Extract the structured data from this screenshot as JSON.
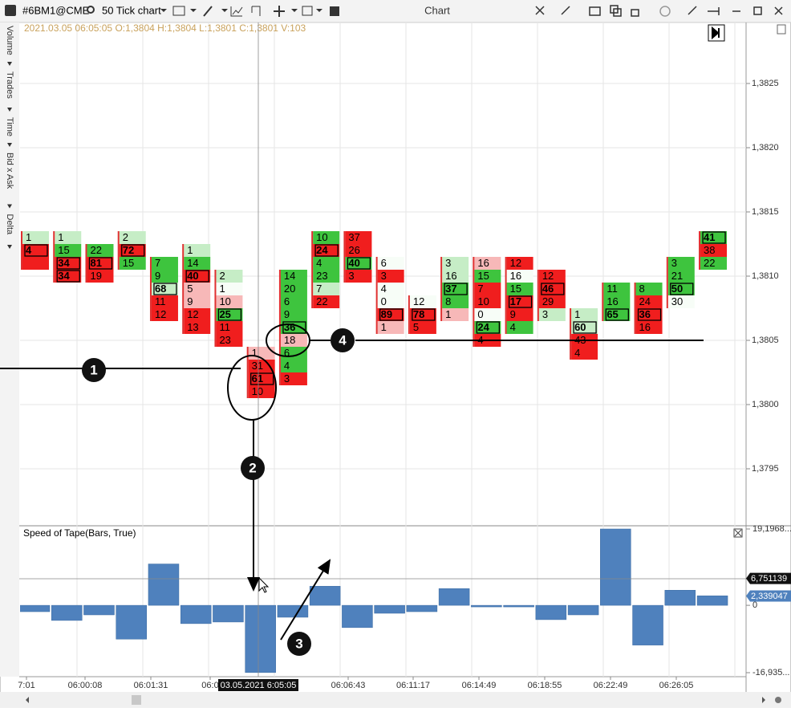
{
  "toolbar": {
    "symbol": "#6BM1@CME",
    "chart_type": "50 Tick chart",
    "window_title": "Chart"
  },
  "side_tabs": [
    "Volume",
    "Trades",
    "Time",
    "Bid x Ask",
    "Delta"
  ],
  "info_line": "2021.03.05 06:05:05 O:1,3804 H:1,3804 L:1,3801 C:1,3801 V:103",
  "price_axis": {
    "ticks": [
      {
        "value": 1.3825,
        "label": "1,3825"
      },
      {
        "value": 1.382,
        "label": "1,3820"
      },
      {
        "value": 1.3815,
        "label": "1,3815"
      },
      {
        "value": 1.381,
        "label": "1,3810"
      },
      {
        "value": 1.3805,
        "label": "1,3805"
      },
      {
        "value": 1.38,
        "label": "1,3800"
      },
      {
        "value": 1.3795,
        "label": "1,3795"
      }
    ]
  },
  "clusters": [
    {
      "high": 1.3813,
      "cells": [
        {
          "v": 1,
          "fill": "lg"
        },
        {
          "v": 4,
          "fill": "r",
          "max": true
        },
        {
          "fill": "r"
        }
      ]
    },
    {
      "high": 1.3813,
      "cells": [
        {
          "v": 1,
          "fill": "lg"
        },
        {
          "v": 15,
          "fill": "g"
        },
        {
          "v": 34,
          "fill": "r",
          "max": true
        },
        {
          "v": 34,
          "fill": "r",
          "max": true
        }
      ]
    },
    {
      "high": 1.3812,
      "cells": [
        {
          "v": 22,
          "fill": "g"
        },
        {
          "v": 81,
          "fill": "r",
          "max": true
        },
        {
          "v": 19,
          "fill": "r"
        }
      ]
    },
    {
      "high": 1.3813,
      "cells": [
        {
          "v": 2,
          "fill": "lg"
        },
        {
          "v": 72,
          "fill": "r",
          "max": true
        },
        {
          "v": 15,
          "fill": "g"
        }
      ]
    },
    {
      "high": 1.3811,
      "cells": [
        {
          "v": 7,
          "fill": "g"
        },
        {
          "v": 9,
          "fill": "g"
        },
        {
          "v": 68,
          "fill": "lg",
          "max": true
        },
        {
          "v": 11,
          "fill": "r"
        },
        {
          "v": 12,
          "fill": "r"
        }
      ]
    },
    {
      "high": 1.3812,
      "cells": [
        {
          "v": 1,
          "fill": "lg"
        },
        {
          "v": 14,
          "fill": "g"
        },
        {
          "v": 40,
          "fill": "r",
          "max": true
        },
        {
          "v": 5,
          "fill": "lr"
        },
        {
          "v": 9,
          "fill": "lr"
        },
        {
          "v": 12,
          "fill": "r"
        },
        {
          "v": 13,
          "fill": "r"
        }
      ]
    },
    {
      "high": 1.381,
      "cells": [
        {
          "v": 2,
          "fill": "lg"
        },
        {
          "v": 1,
          "fill": "w"
        },
        {
          "v": 10,
          "fill": "lr"
        },
        {
          "v": 25,
          "fill": "g",
          "max": true
        },
        {
          "v": 11,
          "fill": "r"
        },
        {
          "v": 23,
          "fill": "r"
        }
      ]
    },
    {
      "high": 1.3804,
      "cells": [
        {
          "v": 1,
          "fill": "lr"
        },
        {
          "v": 31,
          "fill": "r"
        },
        {
          "v": 61,
          "fill": "r",
          "max": true
        },
        {
          "v": 10,
          "fill": "r"
        }
      ]
    },
    {
      "high": 1.381,
      "cells": [
        {
          "v": 14,
          "fill": "g"
        },
        {
          "v": 20,
          "fill": "g"
        },
        {
          "v": 6,
          "fill": "g"
        },
        {
          "v": 9,
          "fill": "g"
        },
        {
          "v": 36,
          "fill": "g",
          "max": true
        },
        {
          "v": 18,
          "fill": "lr"
        },
        {
          "v": 6,
          "fill": "g"
        },
        {
          "v": 4,
          "fill": "g"
        },
        {
          "v": 3,
          "fill": "r"
        }
      ]
    },
    {
      "high": 1.3813,
      "cells": [
        {
          "v": 10,
          "fill": "g"
        },
        {
          "v": 24,
          "fill": "r",
          "max": true
        },
        {
          "v": 4,
          "fill": "g"
        },
        {
          "v": 23,
          "fill": "g"
        },
        {
          "v": 7,
          "fill": "lg"
        },
        {
          "v": 22,
          "fill": "r"
        }
      ]
    },
    {
      "high": 1.3813,
      "cells": [
        {
          "v": 37,
          "fill": "r"
        },
        {
          "v": 26,
          "fill": "r"
        },
        {
          "v": 40,
          "fill": "g",
          "max": true
        },
        {
          "v": 3,
          "fill": "r"
        }
      ]
    },
    {
      "high": 1.3811,
      "cells": [
        {
          "v": 6,
          "fill": "w"
        },
        {
          "v": 3,
          "fill": "r"
        },
        {
          "v": 4,
          "fill": "w"
        },
        {
          "v": 0,
          "fill": "w"
        },
        {
          "v": 89,
          "fill": "r",
          "max": true
        },
        {
          "v": 1,
          "fill": "lr"
        }
      ]
    },
    {
      "high": 1.3808,
      "cells": [
        {
          "v": 12,
          "fill": "w"
        },
        {
          "v": 78,
          "fill": "r",
          "max": true
        },
        {
          "v": 5,
          "fill": "r"
        }
      ]
    },
    {
      "high": 1.3811,
      "cells": [
        {
          "v": 3,
          "fill": "lg"
        },
        {
          "v": 16,
          "fill": "lg"
        },
        {
          "v": 37,
          "fill": "g",
          "max": true
        },
        {
          "v": 8,
          "fill": "g"
        },
        {
          "v": 1,
          "fill": "lr"
        }
      ]
    },
    {
      "high": 1.3811,
      "cells": [
        {
          "v": 16,
          "fill": "lr"
        },
        {
          "v": 15,
          "fill": "g"
        },
        {
          "v": 7,
          "fill": "r"
        },
        {
          "v": 10,
          "fill": "r"
        },
        {
          "v": 0,
          "fill": "w"
        },
        {
          "v": 24,
          "fill": "g",
          "max": true
        },
        {
          "v": 4,
          "fill": "r"
        }
      ]
    },
    {
      "high": 1.3811,
      "cells": [
        {
          "v": 12,
          "fill": "r"
        },
        {
          "v": 16,
          "fill": "w"
        },
        {
          "v": 15,
          "fill": "g"
        },
        {
          "v": 17,
          "fill": "r",
          "max": true
        },
        {
          "v": 9,
          "fill": "r"
        },
        {
          "v": 4,
          "fill": "g"
        }
      ]
    },
    {
      "high": 1.381,
      "cells": [
        {
          "v": 12,
          "fill": "r"
        },
        {
          "v": 46,
          "fill": "r",
          "max": true
        },
        {
          "v": 29,
          "fill": "r"
        },
        {
          "v": 3,
          "fill": "lg"
        }
      ]
    },
    {
      "high": 1.3807,
      "cells": [
        {
          "v": 1,
          "fill": "lg"
        },
        {
          "v": 60,
          "fill": "lg",
          "max": true
        },
        {
          "v": 43,
          "fill": "r"
        },
        {
          "v": 4,
          "fill": "r"
        }
      ]
    },
    {
      "high": 1.3809,
      "cells": [
        {
          "v": 11,
          "fill": "g"
        },
        {
          "v": 16,
          "fill": "g"
        },
        {
          "v": 65,
          "fill": "g",
          "max": true
        }
      ]
    },
    {
      "high": 1.3809,
      "cells": [
        {
          "v": 8,
          "fill": "g"
        },
        {
          "v": 24,
          "fill": "r"
        },
        {
          "v": 36,
          "fill": "r",
          "max": true
        },
        {
          "v": 16,
          "fill": "r"
        }
      ]
    },
    {
      "high": 1.3811,
      "cells": [
        {
          "v": 3,
          "fill": "g"
        },
        {
          "v": 21,
          "fill": "g"
        },
        {
          "v": 50,
          "fill": "g",
          "max": true
        },
        {
          "v": 30,
          "fill": "w"
        }
      ]
    },
    {
      "high": 1.3813,
      "cells": [
        {
          "v": 41,
          "fill": "g",
          "max": true
        },
        {
          "v": 38,
          "fill": "r"
        },
        {
          "v": 22,
          "fill": "g"
        }
      ]
    }
  ],
  "indicator": {
    "title": "Speed of Tape(Bars, True)",
    "color": "#4f81bd",
    "ylim": [
      -16.935,
      19.1968
    ],
    "ticks": [
      {
        "value": 19.1968,
        "label": "19,1968..."
      },
      0,
      {
        "value": -16.935,
        "label": "-16,935..."
      }
    ],
    "markers": [
      {
        "value": 6.751139,
        "label": "6,751139"
      },
      {
        "value": 2.339047,
        "label": "2,339047"
      }
    ],
    "values": [
      -1.6,
      -3.8,
      -2.4,
      -8.5,
      10.4,
      -4.6,
      -4.2,
      -16.9,
      -3.0,
      4.8,
      -5.6,
      -2.0,
      -1.6,
      4.2,
      -0.4,
      -0.4,
      -3.6,
      -2.4,
      19.2,
      -10.0,
      3.8,
      2.4
    ]
  },
  "time_axis": {
    "labels": [
      "7:01",
      "06:00:08",
      "06:01:31",
      "06:0",
      "06:06:43",
      "06:11:17",
      "06:14:49",
      "06:18:55",
      "06:22:49",
      "06:26:05"
    ],
    "cursor_label": "03.05.2021 6:05:05"
  },
  "annotations": [
    "1",
    "2",
    "3",
    "4"
  ]
}
